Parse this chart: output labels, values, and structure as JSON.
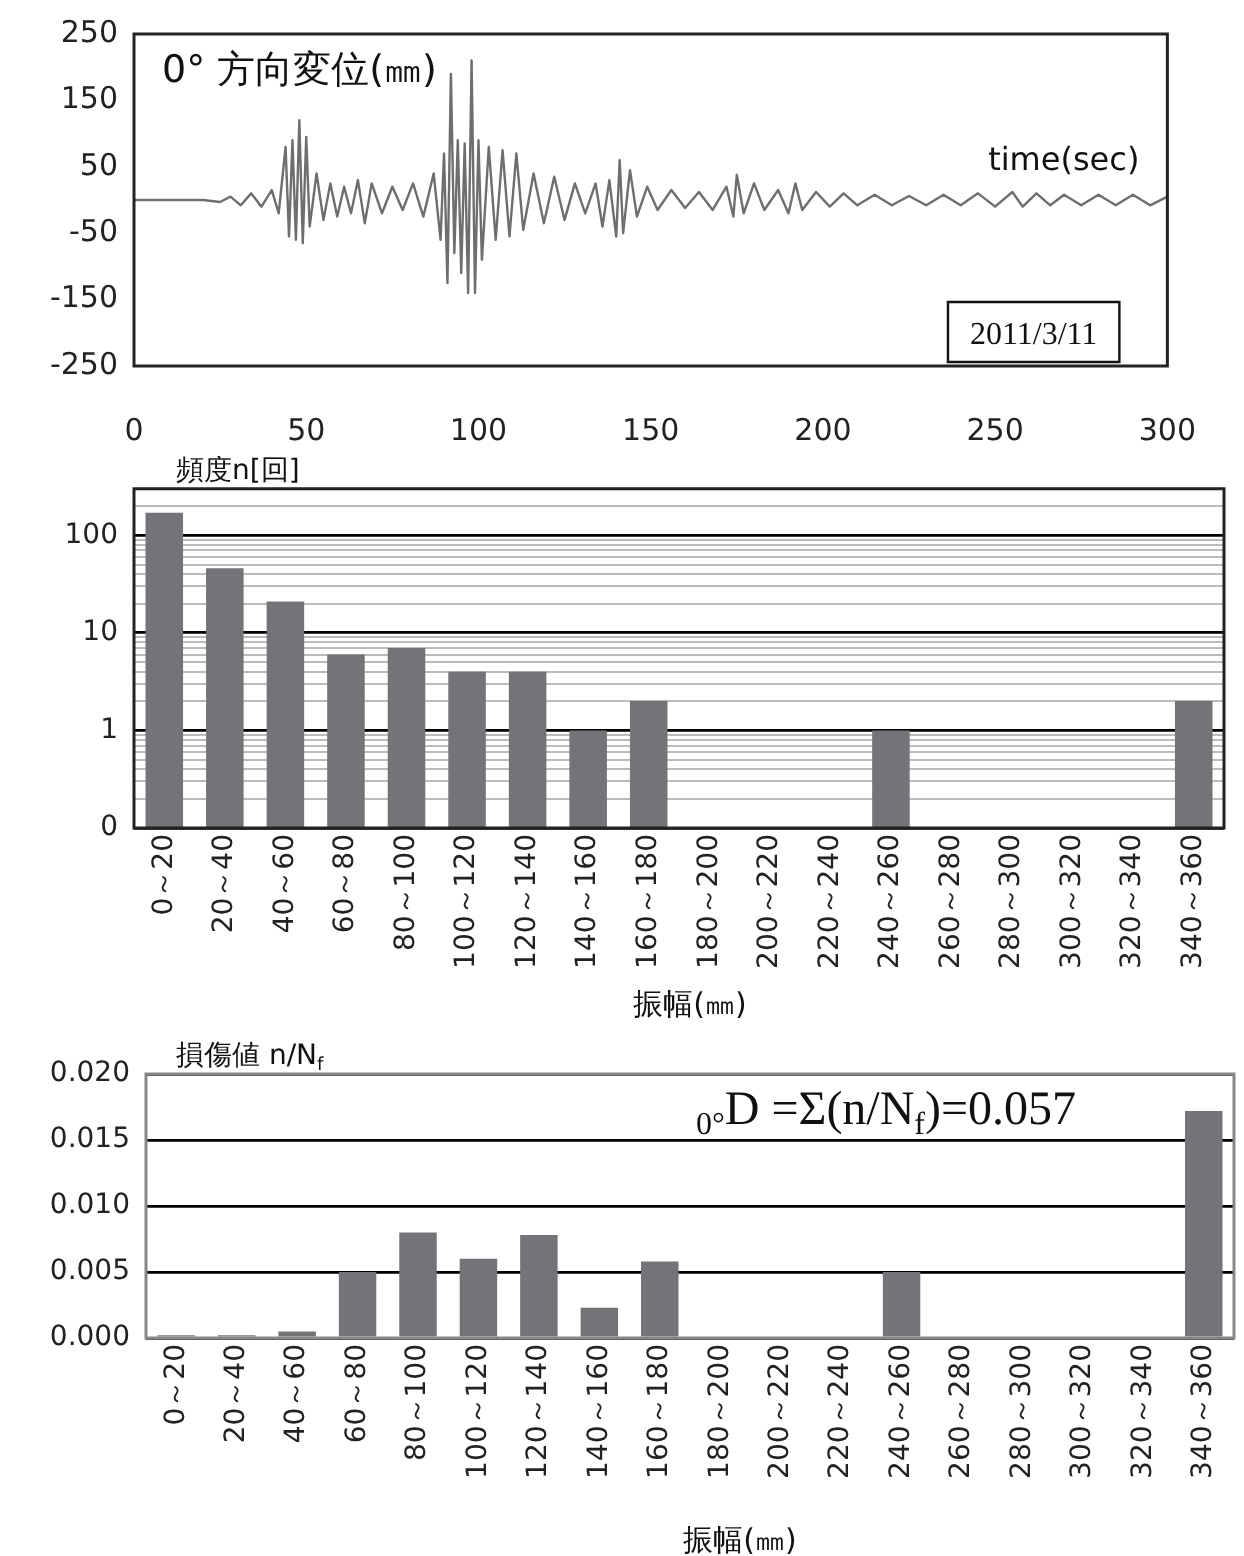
{
  "chart_data": [
    {
      "type": "line",
      "title": "0° 方向変位(㎜)",
      "xlabel": "time(sec)",
      "annotations": [
        "2011/3/11"
      ],
      "legend": false,
      "grid": false,
      "marker": "none",
      "line_style": "solid",
      "xlim": [
        0,
        300
      ],
      "xticks": [
        0,
        50,
        100,
        150,
        200,
        250,
        300
      ],
      "ylim": [
        -250,
        250
      ],
      "yticks": [
        -250,
        -150,
        -50,
        50,
        150,
        250
      ],
      "x": [
        0,
        20,
        25,
        28,
        31,
        34,
        37,
        40,
        42,
        44,
        45,
        46,
        47,
        48,
        49,
        50,
        51,
        53,
        55,
        57,
        59,
        61,
        63,
        65,
        67,
        69,
        72,
        75,
        78,
        81,
        84,
        87,
        89,
        90,
        91,
        92,
        93,
        94,
        95,
        96,
        97,
        98,
        99,
        100,
        101,
        103,
        105,
        107,
        109,
        111,
        113,
        116,
        119,
        122,
        125,
        128,
        131,
        134,
        136,
        138,
        140,
        141,
        142,
        144,
        146,
        149,
        152,
        156,
        160,
        164,
        168,
        172,
        174,
        175,
        177,
        180,
        183,
        187,
        190,
        192,
        194,
        198,
        202,
        206,
        210,
        215,
        220,
        225,
        230,
        235,
        240,
        245,
        250,
        255,
        258,
        262,
        266,
        270,
        275,
        280,
        285,
        290,
        295,
        300
      ],
      "series": [
        {
          "color": "#6e6e6e",
          "values": [
            0,
            0,
            -3,
            5,
            -8,
            10,
            -10,
            15,
            -20,
            80,
            -55,
            90,
            -60,
            120,
            -65,
            95,
            -40,
            40,
            -30,
            25,
            -25,
            20,
            -20,
            30,
            -35,
            25,
            -20,
            20,
            -15,
            25,
            -25,
            40,
            -60,
            70,
            -125,
            190,
            -80,
            90,
            -110,
            85,
            -140,
            210,
            -140,
            90,
            -90,
            80,
            -60,
            75,
            -55,
            70,
            -45,
            40,
            -35,
            35,
            -30,
            25,
            -20,
            25,
            -40,
            30,
            -55,
            60,
            -50,
            45,
            -25,
            20,
            -15,
            15,
            -12,
            12,
            -15,
            20,
            -25,
            38,
            -20,
            25,
            -15,
            15,
            -20,
            25,
            -15,
            12,
            -10,
            10,
            -8,
            8,
            -8,
            6,
            -8,
            8,
            -8,
            10,
            -10,
            12,
            -10,
            10,
            -8,
            8,
            -8,
            8,
            -8,
            8,
            -8,
            5
          ]
        }
      ]
    },
    {
      "type": "bar",
      "ylabel": "頻度n[回]",
      "xlabel": "振幅(㎜)",
      "legend": false,
      "grid": "y",
      "log": "y",
      "ylim": [
        0.1,
        300
      ],
      "yticks": [
        {
          "value": 0.1,
          "label": "0"
        },
        {
          "value": 0.2,
          "label": null
        },
        {
          "value": 0.3,
          "label": null
        },
        {
          "value": 0.4,
          "label": null
        },
        {
          "value": 0.5,
          "label": null
        },
        {
          "value": 0.6,
          "label": null
        },
        {
          "value": 0.7,
          "label": null
        },
        {
          "value": 0.8,
          "label": null
        },
        {
          "value": 0.9,
          "label": null
        },
        1,
        {
          "value": 2,
          "label": null
        },
        {
          "value": 3,
          "label": null
        },
        {
          "value": 4,
          "label": null
        },
        {
          "value": 5,
          "label": null
        },
        {
          "value": 6,
          "label": null
        },
        {
          "value": 7,
          "label": null
        },
        {
          "value": 8,
          "label": null
        },
        {
          "value": 9,
          "label": null
        },
        10,
        {
          "value": 20,
          "label": null
        },
        {
          "value": 30,
          "label": null
        },
        {
          "value": 40,
          "label": null
        },
        {
          "value": 50,
          "label": null
        },
        {
          "value": 60,
          "label": null
        },
        {
          "value": 70,
          "label": null
        },
        {
          "value": 80,
          "label": null
        },
        {
          "value": 90,
          "label": null
        },
        100,
        {
          "value": 200,
          "label": null
        },
        {
          "value": 300,
          "label": null
        }
      ],
      "categories": [
        "0～20",
        "20～40",
        "40～60",
        "60～80",
        "80～100",
        "100～120",
        "120～140",
        "140～160",
        "160～180",
        "180～200",
        "200～220",
        "220～240",
        "240～260",
        "260～280",
        "280～300",
        "300～320",
        "320～340",
        "340～360"
      ],
      "series": [
        {
          "color": "#737478",
          "values": [
            170,
            46,
            21,
            6,
            7,
            4,
            4,
            1,
            2,
            null,
            null,
            null,
            1,
            null,
            null,
            null,
            null,
            2
          ]
        }
      ]
    },
    {
      "type": "bar",
      "ylabel": "損傷値 n/N$_{f}$",
      "xlabel": "振幅(㎜)",
      "annotations": [
        "$_{0°}$D =Σ(n/N$_{f}$)=0.057"
      ],
      "legend": false,
      "grid": "y",
      "ylim": [
        0,
        0.02
      ],
      "yticks": [
        {
          "value": 0,
          "label": "0.000"
        },
        {
          "value": 0.005,
          "label": "0.005"
        },
        {
          "value": 0.01,
          "label": "0.010"
        },
        {
          "value": 0.015,
          "label": "0.015"
        },
        {
          "value": 0.02,
          "label": "0.020"
        }
      ],
      "categories": [
        "0～20",
        "20～40",
        "40～60",
        "60～80",
        "80～100",
        "100～120",
        "120～140",
        "140～160",
        "160～180",
        "180～200",
        "200～220",
        "220～240",
        "240～260",
        "260～280",
        "280～300",
        "300～320",
        "320～340",
        "340～360"
      ],
      "series": [
        {
          "color": "#737478",
          "values": [
            0.0002,
            0.0002,
            0.0005,
            0.005,
            0.008,
            0.006,
            0.0078,
            0.0023,
            0.0058,
            null,
            null,
            null,
            0.005,
            null,
            null,
            null,
            null,
            0.0172
          ]
        }
      ]
    }
  ]
}
